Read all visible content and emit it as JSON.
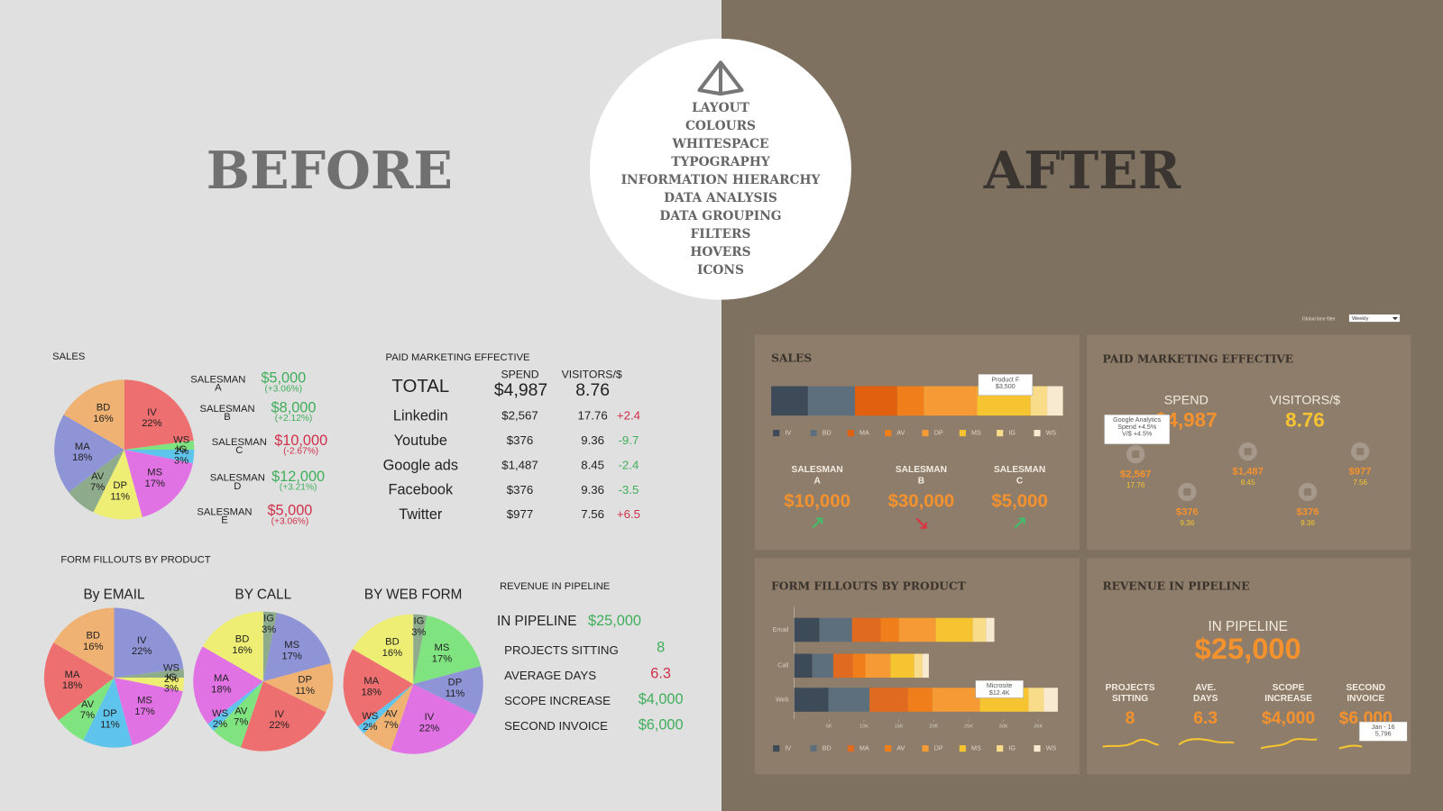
{
  "before": {
    "heading": "BEFORE",
    "sales": {
      "title": "SALES",
      "pie": [
        {
          "name": "IV",
          "value": 22,
          "value_label": "22%",
          "color": "#ee6f70"
        },
        {
          "name": "WS",
          "value": 2,
          "value_label": "2%",
          "color": "#7fe47f"
        },
        {
          "name": "IG",
          "value": 3,
          "value_label": "3%",
          "color": "#5ec4ec"
        },
        {
          "name": "MS",
          "value": 17,
          "value_label": "17%",
          "color": "#e072e4"
        },
        {
          "name": "DP",
          "value": 11,
          "value_label": "11%",
          "color": "#eeee74"
        },
        {
          "name": "AV",
          "value": 7,
          "value_label": "7%",
          "color": "#8eac8c"
        },
        {
          "name": "MA",
          "value": 18,
          "value_label": "18%",
          "color": "#8e94d6"
        },
        {
          "name": "BD",
          "value": 16,
          "value_label": "16%",
          "color": "#f0b272"
        }
      ],
      "salesmen": [
        {
          "name": [
            "SALESMAN",
            "A"
          ],
          "amount": "$5,000",
          "change": "(+3.06%)",
          "color": "#3fae5a"
        },
        {
          "name": [
            "SALESMAN",
            "B"
          ],
          "amount": "$8,000",
          "change": "(+2.12%)",
          "color": "#3fae5a"
        },
        {
          "name": [
            "SALESMAN",
            "C"
          ],
          "amount": "$10,000",
          "change": "(-2.67%)",
          "color": "#d0304a"
        },
        {
          "name": [
            "SALESMAN",
            "D"
          ],
          "amount": "$12,000",
          "change": "(+3.21%)",
          "color": "#3fae5a"
        },
        {
          "name": [
            "SALESMAN",
            "E"
          ],
          "amount": "$5,000",
          "change": "(+3.06%)",
          "color": "#d0304a"
        }
      ]
    },
    "paid_marketing": {
      "title": "PAID MARKETING EFFECTIVE",
      "columns": [
        "SPEND",
        "VISITORS/$"
      ],
      "total": {
        "label": "TOTAL",
        "spend": "$4,987",
        "visitors": "8.76"
      },
      "rows": [
        {
          "channel": "Linkedin",
          "spend": "$2,567",
          "visitors": "17.76",
          "change": "+2.4",
          "color": "#d0304a"
        },
        {
          "channel": "Youtube",
          "spend": "$376",
          "visitors": "9.36",
          "change": "-9.7",
          "color": "#3fae5a"
        },
        {
          "channel": "Google ads",
          "spend": "$1,487",
          "visitors": "8.45",
          "change": "-2.4",
          "color": "#3fae5a"
        },
        {
          "channel": "Facebook",
          "spend": "$376",
          "visitors": "9.36",
          "change": "-3.5",
          "color": "#3fae5a"
        },
        {
          "channel": "Twitter",
          "spend": "$977",
          "visitors": "7.56",
          "change": "+6.5",
          "color": "#d0304a"
        }
      ]
    },
    "form_fillouts": {
      "title": "FORM FILLOUTS BY PRODUCT",
      "pies": [
        {
          "title": "By EMAIL",
          "slices": [
            {
              "name": "IV",
              "value": 22,
              "value_label": "22%",
              "color": "#8e94d6"
            },
            {
              "name": "WS",
              "value": 2,
              "value_label": "2%",
              "color": "#8eac8c"
            },
            {
              "name": "IG",
              "value": 3,
              "value_label": "3%",
              "color": "#eeee74"
            },
            {
              "name": "MS",
              "value": 17,
              "value_label": "17%",
              "color": "#e072e4"
            },
            {
              "name": "DP",
              "value": 11,
              "value_label": "11%",
              "color": "#5ec4ec"
            },
            {
              "name": "AV",
              "value": 7,
              "value_label": "7%",
              "color": "#7fe47f"
            },
            {
              "name": "MA",
              "value": 18,
              "value_label": "18%",
              "color": "#ee6f70"
            },
            {
              "name": "BD",
              "value": 16,
              "value_label": "16%",
              "color": "#f0b272"
            }
          ]
        },
        {
          "title": "BY CALL",
          "slices": [
            {
              "name": "IG",
              "value": 3,
              "value_label": "3%",
              "color": "#8eac8c"
            },
            {
              "name": "MS",
              "value": 17,
              "value_label": "17%",
              "color": "#8e94d6"
            },
            {
              "name": "DP",
              "value": 11,
              "value_label": "11%",
              "color": "#f0b272"
            },
            {
              "name": "IV",
              "value": 22,
              "value_label": "22%",
              "color": "#ee6f70"
            },
            {
              "name": "AV",
              "value": 7,
              "value_label": "7%",
              "color": "#7fe47f"
            },
            {
              "name": "WS",
              "value": 2,
              "value_label": "2%",
              "color": "#5ec4ec"
            },
            {
              "name": "MA",
              "value": 18,
              "value_label": "18%",
              "color": "#e072e4"
            },
            {
              "name": "BD",
              "value": 16,
              "value_label": "16%",
              "color": "#eeee74"
            }
          ]
        },
        {
          "title": "BY WEB FORM",
          "slices": [
            {
              "name": "IG",
              "value": 3,
              "value_label": "3%",
              "color": "#8eac8c"
            },
            {
              "name": "MS",
              "value": 17,
              "value_label": "17%",
              "color": "#7fe47f"
            },
            {
              "name": "DP",
              "value": 11,
              "value_label": "11%",
              "color": "#8e94d6"
            },
            {
              "name": "IV",
              "value": 22,
              "value_label": "22%",
              "color": "#e072e4"
            },
            {
              "name": "AV",
              "value": 7,
              "value_label": "7%",
              "color": "#f0b272"
            },
            {
              "name": "WS",
              "value": 2,
              "value_label": "2%",
              "color": "#5ec4ec"
            },
            {
              "name": "MA",
              "value": 18,
              "value_label": "18%",
              "color": "#ee6f70"
            },
            {
              "name": "BD",
              "value": 16,
              "value_label": "16%",
              "color": "#eeee74"
            }
          ]
        }
      ]
    },
    "revenue": {
      "title": "REVENUE IN PIPELINE",
      "in_pipeline": {
        "label": "IN PIPELINE",
        "value": "$25,000"
      },
      "rows": [
        {
          "label": "PROJECTS SITTING",
          "value": "8",
          "color": "#3fae5a"
        },
        {
          "label": "AVERAGE DAYS",
          "value": "6.3",
          "color": "#d0304a"
        },
        {
          "label": "SCOPE INCREASE",
          "value": "$4,000",
          "color": "#3fae5a"
        },
        {
          "label": "SECOND INVOICE",
          "value": "$6,000",
          "color": "#3fae5a"
        }
      ]
    }
  },
  "checklist": [
    "LAYOUT",
    "COLOURS",
    "WHITESPACE",
    "TYPOGRAPHY",
    "INFORMATION HIERARCHY",
    "DATA ANALYSIS",
    "DATA GROUPING",
    "FILTERS",
    "HOVERS",
    "ICONS"
  ],
  "after": {
    "heading": "AFTER",
    "time_filter": {
      "label": "Global time filter",
      "value": "Weekly"
    },
    "sales": {
      "title": "SALES",
      "bar": [
        {
          "name": "IV",
          "color": "#3d4a57",
          "value": 12.6
        },
        {
          "name": "BD",
          "color": "#5d6f7c",
          "value": 16.1
        },
        {
          "name": "MA",
          "color": "#e06010",
          "value": 14.5
        },
        {
          "name": "AV",
          "color": "#f07e1a",
          "value": 9.1
        },
        {
          "name": "DP",
          "color": "#f59a35",
          "value": 18.3
        },
        {
          "name": "MS",
          "color": "#f7c431",
          "value": 18.3
        },
        {
          "name": "IG",
          "color": "#f9dc8a",
          "value": 5.7
        },
        {
          "name": "WS",
          "color": "#f8ead0",
          "value": 5.4
        }
      ],
      "tooltip": [
        "Product F",
        "$3,500"
      ],
      "salesmen": [
        {
          "name": [
            "SALESMAN",
            "A"
          ],
          "amount": "$10,000",
          "trend": "up"
        },
        {
          "name": [
            "SALESMAN",
            "B"
          ],
          "amount": "$30,000",
          "trend": "down"
        },
        {
          "name": [
            "SALESMAN",
            "C"
          ],
          "amount": "$5,000",
          "trend": "up"
        }
      ]
    },
    "paid_marketing": {
      "title": "PAID MARKETING EFFECTIVE",
      "spend": {
        "label": "SPEND",
        "value": "$4,987"
      },
      "visitors": {
        "label": "VISITORS/$",
        "value": "8.76"
      },
      "channels": [
        {
          "spend": "$2,567",
          "visitors": "17.76"
        },
        {
          "spend": "$1,487",
          "visitors": "8.45"
        },
        {
          "spend": "$977",
          "visitors": "7.56"
        },
        {
          "spend": "$376",
          "visitors": "9.36"
        },
        {
          "spend": "$376",
          "visitors": "9.36"
        }
      ],
      "tooltip": [
        "Google Analytics",
        "Spend +4.5%",
        "V/$ +4.5%"
      ]
    },
    "form_fillouts": {
      "title": "FORM FILLOUTS BY PRODUCT",
      "chart": {
        "type": "bar",
        "orientation": "horizontal",
        "stacked": true,
        "categories": [
          "Email",
          "Call",
          "Web"
        ],
        "series": [
          {
            "name": "IV",
            "color": "#3d4a57",
            "values": [
              3.6,
              2.6,
              4.9
            ]
          },
          {
            "name": "BD",
            "color": "#5d6f7c",
            "values": [
              4.7,
              3.0,
              5.9
            ]
          },
          {
            "name": "MA",
            "color": "#e06a20",
            "values": [
              4.1,
              2.8,
              5.5
            ]
          },
          {
            "name": "AV",
            "color": "#f07e1a",
            "values": [
              2.6,
              1.8,
              3.5
            ]
          },
          {
            "name": "DP",
            "color": "#f59a35",
            "values": [
              5.3,
              3.6,
              6.8
            ]
          },
          {
            "name": "MS",
            "color": "#f7c431",
            "values": [
              5.3,
              3.4,
              7.0
            ]
          },
          {
            "name": "IG",
            "color": "#f9dc8a",
            "values": [
              1.9,
              1.2,
              2.2
            ]
          },
          {
            "name": "WS",
            "color": "#f8ead0",
            "values": [
              1.2,
              0.9,
              2.0
            ]
          }
        ],
        "xlim": [
          0,
          38
        ],
        "xticks": [
          {
            "value": 5,
            "label": "5K"
          },
          {
            "value": 10,
            "label": "10K"
          },
          {
            "value": 15,
            "label": "15K"
          },
          {
            "value": 20,
            "label": "20K"
          },
          {
            "value": 25,
            "label": "25K"
          },
          {
            "value": 30,
            "label": "30K"
          },
          {
            "value": 35,
            "label": "35K"
          }
        ]
      },
      "tooltip": [
        "Microsite",
        "$12.4K"
      ]
    },
    "revenue": {
      "title": "REVENUE IN PIPELINE",
      "in_pipeline": {
        "label": "IN PIPELINE",
        "value": "$25,000"
      },
      "metrics": [
        {
          "label": [
            "PROJECTS",
            "SITTING"
          ],
          "value": "8"
        },
        {
          "label": [
            "AVE.",
            "DAYS"
          ],
          "value": "6.3"
        },
        {
          "label": [
            "SCOPE",
            "INCREASE"
          ],
          "value": "$4,000"
        },
        {
          "label": [
            "SECOND",
            "INVOICE"
          ],
          "value": "$6,000"
        }
      ],
      "tooltip": [
        "Jan - 16",
        "5,796"
      ]
    }
  }
}
